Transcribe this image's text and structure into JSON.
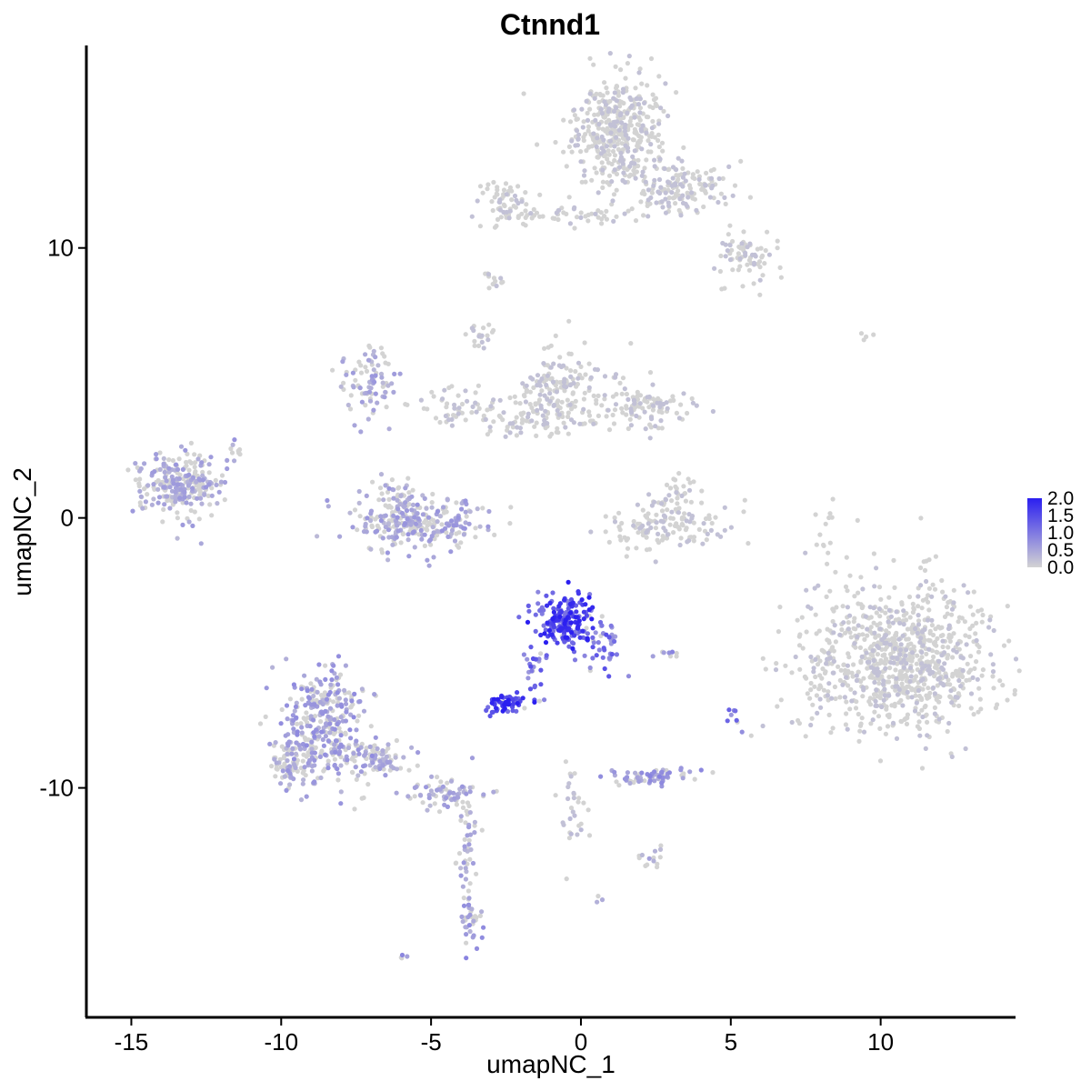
{
  "chart_data": {
    "type": "scatter",
    "title": "Ctnnd1",
    "xlabel": "umapNC_1",
    "ylabel": "umapNC_2",
    "xlim": [
      -16.5,
      14.5
    ],
    "ylim": [
      -18.5,
      17.5
    ],
    "x_ticks": [
      -15,
      -10,
      -5,
      0,
      5,
      10
    ],
    "y_ticks": [
      -10,
      0,
      10
    ],
    "x_tick_labels": [
      "-15",
      "-10",
      "-5",
      "0",
      "5",
      "10"
    ],
    "y_tick_labels": [
      "-10",
      "0",
      "10"
    ],
    "grid": false,
    "legend": {
      "placement": "right",
      "type": "colorbar",
      "range": [
        0,
        2.0
      ],
      "ticks": [
        "2.0",
        "1.5",
        "1.0",
        "0.5",
        "0.0"
      ],
      "low_color": "#D3D3D3",
      "high_color": "#2B1FF0"
    },
    "clusters": [
      {
        "cx": 1.3,
        "cy": 14.4,
        "sx": 0.9,
        "sy": 1.1,
        "n": 420,
        "expr": 0.02
      },
      {
        "cx": 3.2,
        "cy": 12.2,
        "sx": 1.0,
        "sy": 0.6,
        "n": 160,
        "expr": 0.03
      },
      {
        "cx": 5.5,
        "cy": 9.6,
        "sx": 0.6,
        "sy": 0.6,
        "n": 70,
        "expr": 0.03
      },
      {
        "cx": -2.5,
        "cy": 11.7,
        "sx": 0.6,
        "sy": 0.5,
        "n": 60,
        "expr": 0.04
      },
      {
        "cx": -0.5,
        "cy": 11.2,
        "sx": 1.4,
        "sy": 0.2,
        "n": 50,
        "expr": 0.02
      },
      {
        "cx": -2.9,
        "cy": 8.9,
        "sx": 0.25,
        "sy": 0.2,
        "n": 12,
        "expr": 0.02
      },
      {
        "cx": 9.5,
        "cy": 6.7,
        "sx": 0.2,
        "sy": 0.1,
        "n": 4,
        "expr": 0.0
      },
      {
        "cx": 10.6,
        "cy": -5.2,
        "sx": 1.8,
        "sy": 1.6,
        "n": 900,
        "expr": 0.02
      },
      {
        "cx": 8.2,
        "cy": -0.7,
        "sx": 0.25,
        "sy": 1.0,
        "n": 14,
        "expr": 0.0
      },
      {
        "cx": -0.8,
        "cy": 4.8,
        "sx": 0.8,
        "sy": 0.9,
        "n": 160,
        "expr": 0.1
      },
      {
        "cx": 2.0,
        "cy": 4.1,
        "sx": 0.9,
        "sy": 0.5,
        "n": 110,
        "expr": 0.15
      },
      {
        "cx": -1.8,
        "cy": 3.7,
        "sx": 1.2,
        "sy": 0.4,
        "n": 60,
        "expr": 0.05
      },
      {
        "cx": -4.0,
        "cy": 4.2,
        "sx": 1.0,
        "sy": 0.5,
        "n": 55,
        "expr": 0.12
      },
      {
        "cx": -3.4,
        "cy": 6.7,
        "sx": 0.25,
        "sy": 0.4,
        "n": 20,
        "expr": 0.03
      },
      {
        "cx": -7.0,
        "cy": 5.0,
        "sx": 0.5,
        "sy": 0.8,
        "n": 90,
        "expr": 0.45
      },
      {
        "cx": -5.4,
        "cy": -0.2,
        "sx": 1.2,
        "sy": 0.6,
        "n": 260,
        "expr": 0.48
      },
      {
        "cx": -6.2,
        "cy": 0.7,
        "sx": 0.4,
        "sy": 0.6,
        "n": 50,
        "expr": 0.45
      },
      {
        "cx": -13.3,
        "cy": 1.2,
        "sx": 0.8,
        "sy": 0.7,
        "n": 260,
        "expr": 0.45
      },
      {
        "cx": -11.5,
        "cy": 2.5,
        "sx": 0.2,
        "sy": 0.3,
        "n": 10,
        "expr": 0.5
      },
      {
        "cx": 2.9,
        "cy": -0.3,
        "sx": 1.2,
        "sy": 0.5,
        "n": 130,
        "expr": 0.03
      },
      {
        "cx": 3.2,
        "cy": 0.8,
        "sx": 0.4,
        "sy": 0.5,
        "n": 35,
        "expr": 0.03
      },
      {
        "cx": -0.5,
        "cy": -3.8,
        "sx": 0.6,
        "sy": 0.6,
        "n": 190,
        "expr": 1.4
      },
      {
        "cx": 0.8,
        "cy": -4.8,
        "sx": 0.4,
        "sy": 0.5,
        "n": 40,
        "expr": 1.0
      },
      {
        "cx": -1.6,
        "cy": -5.6,
        "sx": 0.3,
        "sy": 0.7,
        "n": 25,
        "expr": 1.0
      },
      {
        "cx": -2.4,
        "cy": -6.9,
        "sx": 0.4,
        "sy": 0.2,
        "n": 60,
        "expr": 1.5
      },
      {
        "cx": -8.6,
        "cy": -7.6,
        "sx": 0.8,
        "sy": 1.2,
        "n": 320,
        "expr": 0.55
      },
      {
        "cx": -9.7,
        "cy": -9.0,
        "sx": 0.5,
        "sy": 0.5,
        "n": 90,
        "expr": 0.5
      },
      {
        "cx": -6.8,
        "cy": -8.9,
        "sx": 0.9,
        "sy": 0.4,
        "n": 90,
        "expr": 0.45
      },
      {
        "cx": -4.5,
        "cy": -10.2,
        "sx": 0.8,
        "sy": 0.3,
        "n": 70,
        "expr": 0.45
      },
      {
        "cx": -3.8,
        "cy": -12.5,
        "sx": 0.2,
        "sy": 1.5,
        "n": 50,
        "expr": 0.45
      },
      {
        "cx": -3.6,
        "cy": -15.0,
        "sx": 0.2,
        "sy": 0.5,
        "n": 30,
        "expr": 0.6
      },
      {
        "cx": 2.4,
        "cy": -9.6,
        "sx": 0.8,
        "sy": 0.2,
        "n": 70,
        "expr": 0.6
      },
      {
        "cx": 2.3,
        "cy": -12.6,
        "sx": 0.3,
        "sy": 0.3,
        "n": 14,
        "expr": 0.4
      },
      {
        "cx": -0.3,
        "cy": -10.7,
        "sx": 0.3,
        "sy": 1.0,
        "n": 30,
        "expr": 0.2
      },
      {
        "cx": 5.1,
        "cy": -7.5,
        "sx": 0.15,
        "sy": 0.3,
        "n": 8,
        "expr": 0.9
      },
      {
        "cx": 3.0,
        "cy": -5.0,
        "sx": 0.4,
        "sy": 0.1,
        "n": 8,
        "expr": 0.7
      },
      {
        "cx": -6.0,
        "cy": -16.3,
        "sx": 0.1,
        "sy": 0.1,
        "n": 4,
        "expr": 0.7
      },
      {
        "cx": 0.6,
        "cy": -14.1,
        "sx": 0.1,
        "sy": 0.1,
        "n": 3,
        "expr": 0.6
      }
    ]
  }
}
